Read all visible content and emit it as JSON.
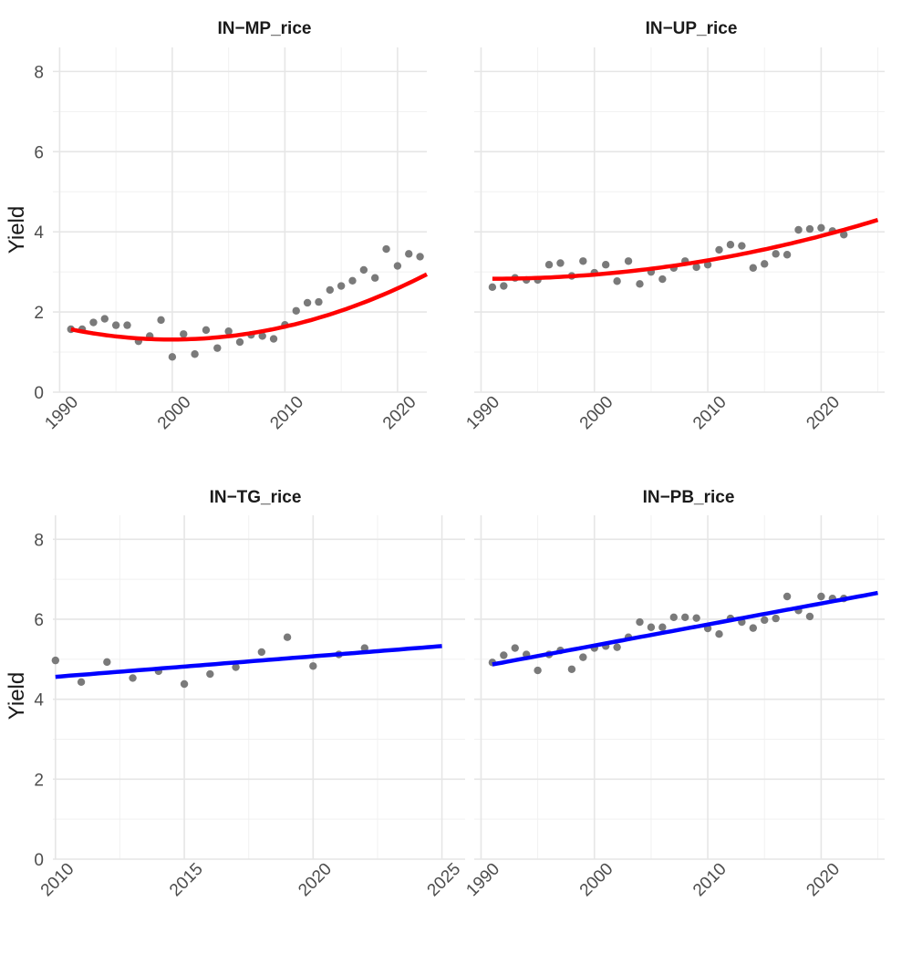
{
  "chart_data": [
    {
      "type": "scatter",
      "title": "IN−MP_rice",
      "xlabel": "",
      "ylabel": "Yield",
      "xlim": [
        1989.4,
        2022.6
      ],
      "ylim": [
        0,
        8.6
      ],
      "x_ticks": [
        1990,
        2000,
        2010,
        2020
      ],
      "y_ticks": [
        0,
        2,
        4,
        6,
        8
      ],
      "points": {
        "x": [
          1991,
          1992,
          1993,
          1994,
          1995,
          1996,
          1997,
          1998,
          1999,
          2000,
          2001,
          2002,
          2003,
          2004,
          2005,
          2006,
          2007,
          2008,
          2009,
          2010,
          2011,
          2012,
          2013,
          2014,
          2015,
          2016,
          2017,
          2018,
          2019,
          2020,
          2021,
          2022
        ],
        "y": [
          1.57,
          1.57,
          1.74,
          1.83,
          1.67,
          1.67,
          1.27,
          1.4,
          1.8,
          0.88,
          1.45,
          0.95,
          1.55,
          1.1,
          1.52,
          1.25,
          1.43,
          1.4,
          1.33,
          1.68,
          2.03,
          2.23,
          2.25,
          2.55,
          2.65,
          2.78,
          3.05,
          2.85,
          3.57,
          3.15,
          3.45,
          3.38
        ]
      },
      "trend": {
        "kind": "quadratic",
        "color": "#ff0000",
        "x_range": [
          1991,
          2022.6
        ],
        "coefficients": [
          1.315,
          0.00355,
          0.00317
        ],
        "x_center": 2000.5
      }
    },
    {
      "type": "scatter",
      "title": "IN−UP_rice",
      "xlabel": "",
      "ylabel": "",
      "xlim": [
        1989.4,
        2025.6
      ],
      "ylim": [
        0,
        8.6
      ],
      "x_ticks": [
        1990,
        2000,
        2010,
        2020
      ],
      "y_ticks": [
        0,
        2,
        4,
        6,
        8
      ],
      "points": {
        "x": [
          1991,
          1992,
          1993,
          1994,
          1995,
          1996,
          1997,
          1998,
          1999,
          2000,
          2001,
          2002,
          2003,
          2004,
          2005,
          2006,
          2007,
          2008,
          2009,
          2010,
          2011,
          2012,
          2013,
          2014,
          2015,
          2016,
          2017,
          2018,
          2019,
          2020,
          2021,
          2022
        ],
        "y": [
          2.62,
          2.65,
          2.85,
          2.8,
          2.8,
          3.18,
          3.22,
          2.9,
          3.27,
          2.98,
          3.18,
          2.77,
          3.27,
          2.7,
          3.0,
          2.82,
          3.1,
          3.27,
          3.12,
          3.18,
          3.55,
          3.68,
          3.65,
          3.1,
          3.2,
          3.45,
          3.43,
          4.05,
          4.07,
          4.1,
          4.02,
          3.93
        ]
      },
      "trend": {
        "kind": "quadratic",
        "color": "#ff0000",
        "x_range": [
          1991,
          2025
        ],
        "coefficients": [
          2.83,
          0.0,
          0.00127
        ],
        "x_center": 1991
      }
    },
    {
      "type": "scatter",
      "title": "IN−TG_rice",
      "xlabel": "",
      "ylabel": "Yield",
      "xlim": [
        2009.9,
        2025.9
      ],
      "ylim": [
        0,
        8.6
      ],
      "x_ticks": [
        2010,
        2015,
        2020,
        2025
      ],
      "y_ticks": [
        0,
        2,
        4,
        6,
        8
      ],
      "points": {
        "x": [
          2010,
          2011,
          2012,
          2013,
          2014,
          2015,
          2016,
          2017,
          2018,
          2019,
          2020,
          2021,
          2022
        ],
        "y": [
          4.97,
          4.43,
          4.93,
          4.53,
          4.7,
          4.38,
          4.63,
          4.8,
          5.18,
          5.55,
          4.83,
          5.12,
          5.28
        ]
      },
      "trend": {
        "kind": "linear",
        "color": "#0000ff",
        "x_range": [
          2010,
          2025
        ],
        "coefficients": [
          4.56,
          0.0513
        ],
        "x_center": 2010
      }
    },
    {
      "type": "scatter",
      "title": "IN−PB_rice",
      "xlabel": "",
      "ylabel": "",
      "xlim": [
        1989.4,
        2025.6
      ],
      "ylim": [
        0,
        8.6
      ],
      "x_ticks": [
        1990,
        2000,
        2010,
        2020
      ],
      "y_ticks": [
        0,
        2,
        4,
        6,
        8
      ],
      "points": {
        "x": [
          1991,
          1992,
          1993,
          1994,
          1995,
          1996,
          1997,
          1998,
          1999,
          2000,
          2001,
          2002,
          2003,
          2004,
          2005,
          2006,
          2007,
          2008,
          2009,
          2010,
          2011,
          2012,
          2013,
          2014,
          2015,
          2016,
          2017,
          2018,
          2019,
          2020,
          2021,
          2022
        ],
        "y": [
          4.92,
          5.1,
          5.28,
          5.12,
          4.72,
          5.12,
          5.22,
          4.75,
          5.05,
          5.28,
          5.33,
          5.3,
          5.55,
          5.93,
          5.8,
          5.8,
          6.05,
          6.05,
          6.03,
          5.77,
          5.63,
          6.02,
          5.93,
          5.78,
          5.98,
          6.02,
          6.57,
          6.22,
          6.07,
          6.57,
          6.52,
          6.52
        ]
      },
      "trend": {
        "kind": "linear",
        "color": "#0000ff",
        "x_range": [
          1991,
          2025
        ],
        "coefficients": [
          4.87,
          0.0526
        ],
        "x_center": 1991
      }
    }
  ]
}
